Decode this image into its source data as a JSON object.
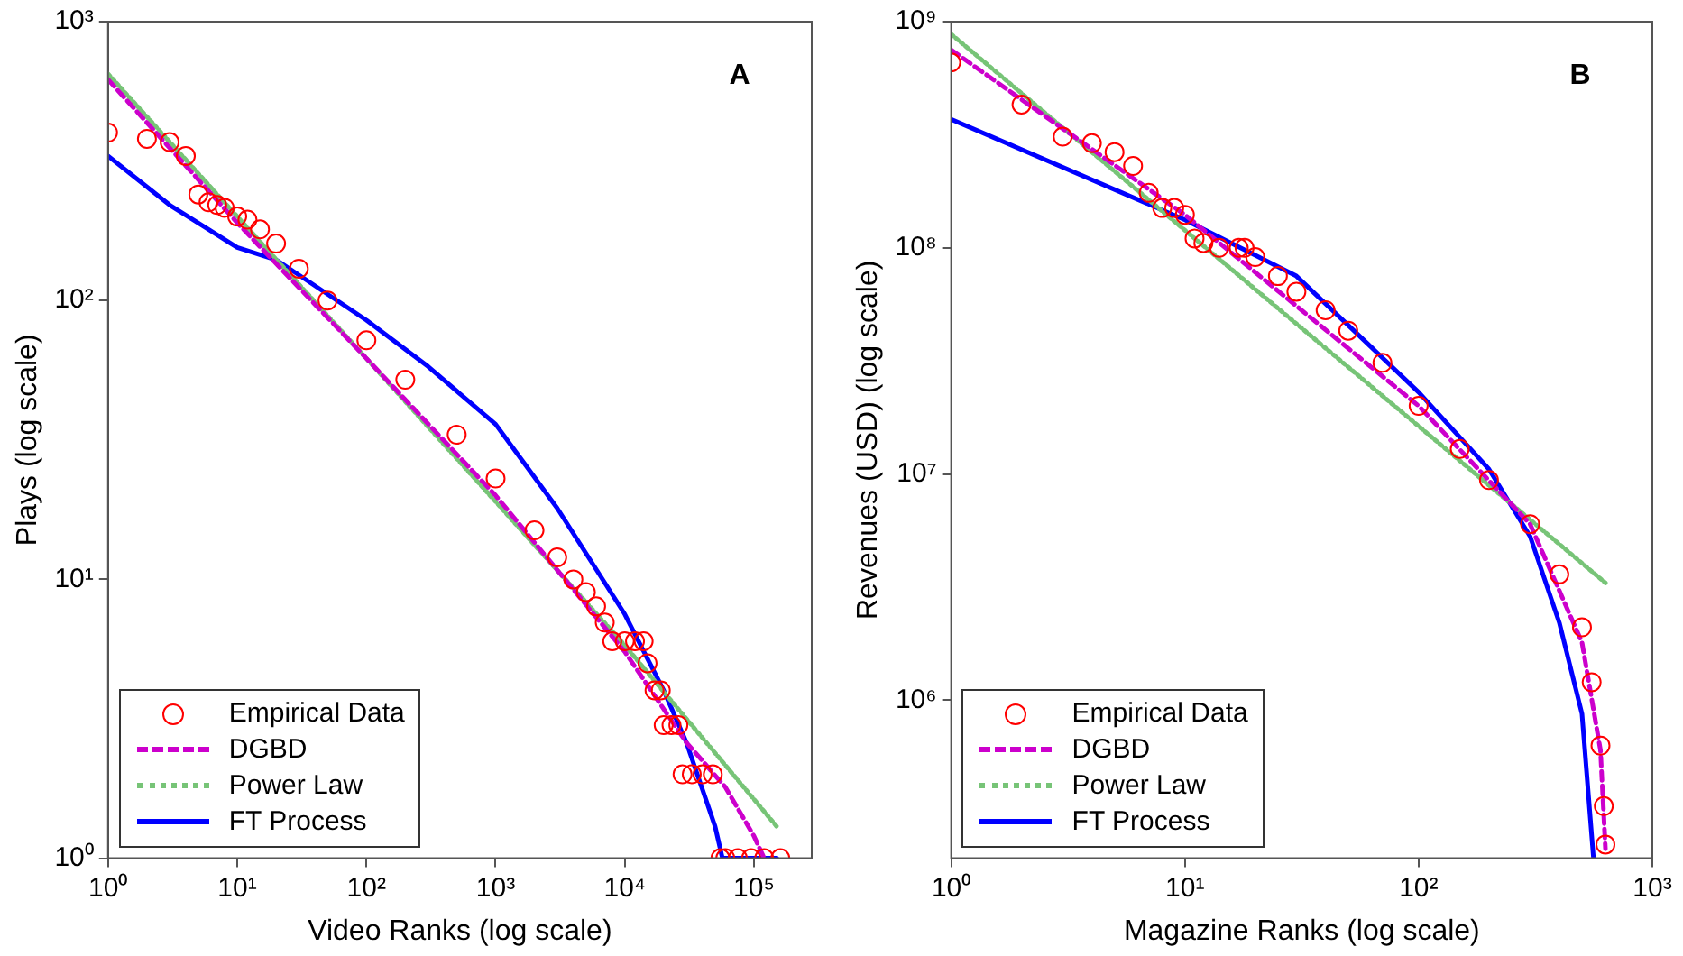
{
  "chart_data": [
    {
      "type": "line",
      "xlabel": "Video Ranks (log scale)",
      "ylabel": "Plays (log scale)",
      "log": "xy",
      "legend": "bottom left",
      "grid": false,
      "xlim": [
        1,
        280000
      ],
      "xticks": [
        {
          "value": 1,
          "label": "10⁰"
        },
        {
          "value": 10,
          "label": "10¹"
        },
        {
          "value": 100,
          "label": "10²"
        },
        {
          "value": 1000,
          "label": "10³"
        },
        {
          "value": 10000,
          "label": "10⁴"
        },
        {
          "value": 100000,
          "label": "10⁵"
        }
      ],
      "ylim": [
        1,
        1000
      ],
      "yticks": [
        {
          "value": 1,
          "label": "10⁰"
        },
        {
          "value": 10,
          "label": "10¹"
        },
        {
          "value": 100,
          "label": "10²"
        },
        {
          "value": 1000,
          "label": "10³"
        }
      ],
      "annotations": [
        "A"
      ],
      "series": [
        {
          "name": "Empirical Data",
          "type": "scatter",
          "marker": "circle",
          "color": "#ff0000",
          "x": [
            1,
            2,
            3,
            4,
            5,
            6,
            7,
            8,
            10,
            12,
            15,
            20,
            30,
            50,
            100,
            200,
            500,
            1000,
            2000,
            3000,
            4000,
            5000,
            6000,
            7000,
            8000,
            10000,
            12000,
            14000,
            15000,
            17000,
            19000,
            20000,
            23000,
            26000,
            28000,
            33000,
            40000,
            48000,
            55000,
            60000,
            75000,
            95000,
            120000,
            160000
          ],
          "values": [
            400,
            380,
            370,
            330,
            240,
            225,
            220,
            215,
            200,
            195,
            180,
            160,
            130,
            100,
            72,
            52,
            33,
            23,
            15,
            12,
            10,
            9,
            8,
            7,
            6,
            6,
            6,
            6,
            5,
            4,
            4,
            3,
            3,
            3,
            2,
            2,
            2,
            2,
            1,
            1,
            1,
            1,
            1,
            1
          ]
        },
        {
          "name": "DGBD",
          "line_style": "dashed",
          "color": "#cc00cc",
          "x": [
            1,
            10,
            100,
            1000,
            10000,
            30000,
            60000,
            100000,
            120000
          ],
          "values": [
            620,
            190,
            62,
            20,
            5.5,
            2.6,
            1.8,
            1.2,
            1
          ]
        },
        {
          "name": "Power Law",
          "line_style": "dotted",
          "color": "#77c477",
          "x": [
            1,
            10,
            100,
            1000,
            10000,
            150000
          ],
          "values": [
            650,
            200,
            62,
            19,
            5.8,
            1.3
          ]
        },
        {
          "name": "FT Process",
          "line_style": "solid",
          "color": "#0000ff",
          "x": [
            1,
            3,
            10,
            20,
            100,
            300,
            1000,
            3000,
            10000,
            20000,
            30000,
            50000,
            57000,
            150000
          ],
          "values": [
            330,
            220,
            155,
            140,
            85,
            58,
            36,
            18,
            7.5,
            4,
            2.6,
            1.3,
            1,
            1
          ]
        }
      ]
    },
    {
      "type": "line",
      "xlabel": "Magazine Ranks (log scale)",
      "ylabel": "Revenues (USD) (log scale)",
      "log": "xy",
      "legend": "bottom left",
      "grid": false,
      "xlim": [
        1,
        1000
      ],
      "xticks": [
        {
          "value": 1,
          "label": "10⁰"
        },
        {
          "value": 10,
          "label": "10¹"
        },
        {
          "value": 100,
          "label": "10²"
        },
        {
          "value": 1000,
          "label": "10³"
        }
      ],
      "ylim": [
        200000,
        1000000000
      ],
      "yticks": [
        {
          "value": 1000000,
          "label": "10⁶"
        },
        {
          "value": 10000000,
          "label": "10⁷"
        },
        {
          "value": 100000000,
          "label": "10⁸"
        },
        {
          "value": 1000000000,
          "label": "10⁹"
        }
      ],
      "annotations": [
        "B"
      ],
      "series": [
        {
          "name": "Empirical Data",
          "type": "scatter",
          "marker": "circle",
          "color": "#ff0000",
          "x": [
            1,
            2,
            3,
            4,
            5,
            6,
            7,
            8,
            9,
            10,
            11,
            12,
            14,
            17,
            18,
            20,
            25,
            30,
            40,
            50,
            70,
            100,
            150,
            200,
            300,
            400,
            500,
            550,
            600,
            620,
            630
          ],
          "values": [
            660000000,
            430000000,
            310000000,
            290000000,
            265000000,
            230000000,
            175000000,
            150000000,
            150000000,
            140000000,
            110000000,
            105000000,
            100000000,
            100000000,
            100000000,
            91000000,
            75000000,
            64000000,
            53000000,
            43000000,
            31000000,
            20000000,
            12900000,
            9400000,
            6000000,
            3600000,
            2100000,
            1200000,
            630000,
            340000,
            230000
          ]
        },
        {
          "name": "DGBD",
          "line_style": "dashed",
          "color": "#cc00cc",
          "x": [
            1,
            10,
            100,
            300,
            500,
            600,
            630
          ],
          "values": [
            750000000,
            140000000,
            20000000,
            6000000,
            1800000,
            600000,
            220000
          ]
        },
        {
          "name": "Power Law",
          "line_style": "dotted",
          "color": "#77c477",
          "x": [
            1,
            630
          ],
          "values": [
            880000000,
            3300000
          ]
        },
        {
          "name": "FT Process",
          "line_style": "solid",
          "color": "#0000ff",
          "x": [
            1,
            10,
            30,
            100,
            200,
            300,
            400,
            500,
            560
          ],
          "values": [
            370000000,
            133000000,
            75000000,
            23000000,
            10500000,
            5300000,
            2200000,
            870000,
            200000
          ]
        }
      ]
    }
  ]
}
